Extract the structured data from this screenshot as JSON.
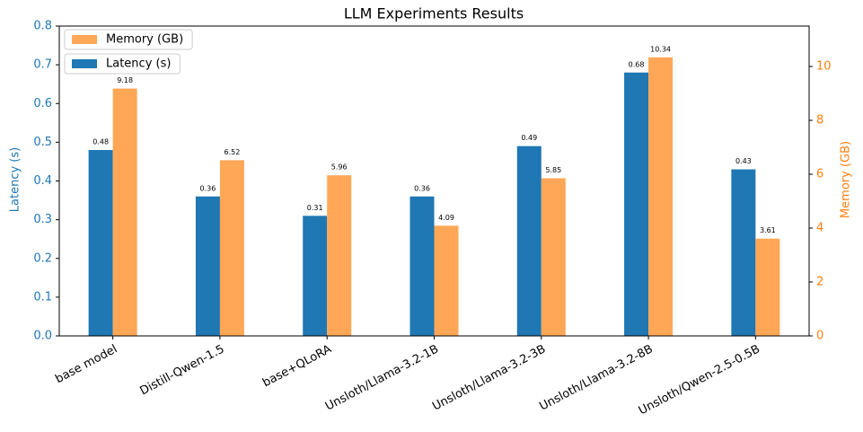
{
  "chart_data": {
    "type": "bar",
    "title": "LLM Experiments Results",
    "categories": [
      "base model",
      "Distill-Qwen-1.5",
      "base+QLoRA",
      "Unsloth/Llama-3.2-1B",
      "Unsloth/Llama-3.2-3B",
      "Unsloth/Llama-3.2-8B",
      "Unsloth/Qwen-2.5-0.5B"
    ],
    "series": [
      {
        "name": "Latency (s)",
        "color": "#1f77b4",
        "values": [
          0.48,
          0.36,
          0.31,
          0.36,
          0.49,
          0.68,
          0.43
        ]
      },
      {
        "name": "Memory (GB)",
        "color": "#ffa756",
        "axis": "y2",
        "values": [
          9.18,
          6.52,
          5.96,
          4.09,
          5.85,
          10.34,
          3.61
        ]
      }
    ],
    "ylabel": "Latency (s)",
    "y2label": "Memory (GB)",
    "ylabel_color": "#1f77b4",
    "y2label_color": "#ff7f0e",
    "ylim": [
      0,
      0.8
    ],
    "yticks": [
      {
        "value": 0,
        "label": "0.0"
      },
      0.1,
      0.2,
      0.3,
      0.4,
      0.5,
      0.6,
      0.7,
      0.8
    ],
    "y2lim": [
      0,
      11.5
    ],
    "y2ticks": [
      0,
      2,
      4,
      6,
      8,
      10
    ],
    "legend": "upper left"
  }
}
